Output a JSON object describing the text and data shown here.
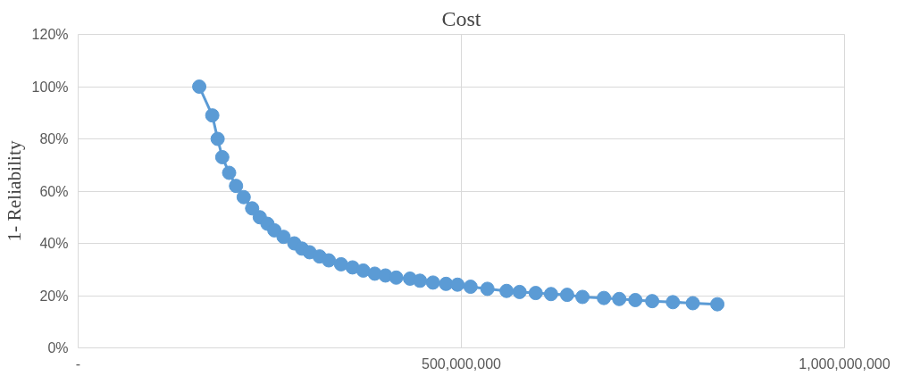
{
  "chart_data": {
    "type": "line",
    "title": "Cost",
    "ylabel": "1- Reliability",
    "x": [
      158000000,
      175000000,
      182000000,
      188000000,
      197000000,
      206000000,
      216000000,
      227000000,
      237000000,
      247000000,
      256000000,
      268000000,
      282000000,
      292000000,
      302000000,
      315000000,
      327000000,
      343000000,
      358000000,
      372000000,
      387000000,
      401000000,
      415000000,
      433000000,
      446000000,
      463000000,
      480000000,
      495000000,
      512000000,
      534000000,
      559000000,
      576000000,
      597000000,
      617000000,
      638000000,
      658000000,
      686000000,
      706000000,
      727000000,
      749000000,
      776000000,
      802000000,
      834000000
    ],
    "series": [
      {
        "color": "#5b9bd5",
        "values": [
          100,
          89,
          80,
          73,
          67,
          62,
          57.7,
          53.4,
          50,
          47.5,
          45,
          42.5,
          40,
          38,
          36.6,
          35,
          33.5,
          32,
          30.8,
          29.6,
          28.4,
          27.7,
          26.9,
          26.5,
          25.7,
          25,
          24.5,
          24.2,
          23.4,
          22.6,
          21.8,
          21.4,
          21,
          20.6,
          20.3,
          19.5,
          19.1,
          18.7,
          18.3,
          17.9,
          17.5,
          17.1,
          16.7
        ]
      }
    ],
    "xlim": [
      0,
      1000000000
    ],
    "xticks": [
      {
        "value": 0,
        "label": "-"
      },
      {
        "value": 500000000,
        "label": "500,000,000"
      },
      {
        "value": 1000000000,
        "label": "1,000,000,000"
      }
    ],
    "ylim": [
      0,
      120
    ],
    "yticks": [
      {
        "value": 0,
        "label": "0%"
      },
      {
        "value": 20,
        "label": "20%"
      },
      {
        "value": 40,
        "label": "40%"
      },
      {
        "value": 60,
        "label": "60%"
      },
      {
        "value": 80,
        "label": "80%"
      },
      {
        "value": 100,
        "label": "100%"
      },
      {
        "value": 120,
        "label": "120%"
      }
    ],
    "grid": true,
    "marker": "circle",
    "line_style": "solid"
  }
}
